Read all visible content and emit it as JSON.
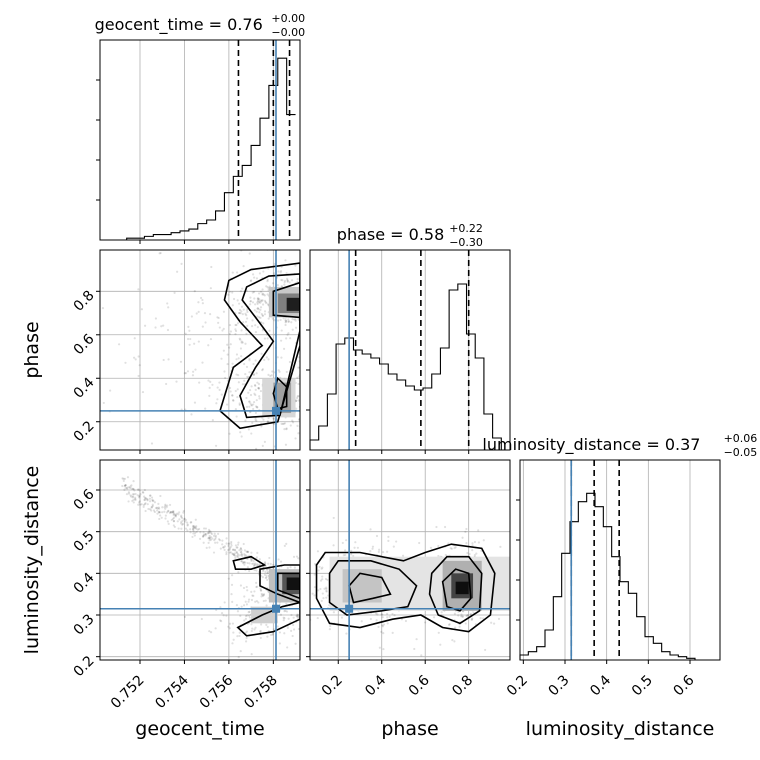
{
  "chart_data": {
    "type": "corner",
    "parameters": [
      "geocent_time",
      "phase",
      "luminosity_distance"
    ],
    "titles": {
      "geocent_time": {
        "name": "geocent_time",
        "median": "0.76",
        "plus": "+0.00",
        "minus": "−0.00"
      },
      "phase": {
        "name": "phase",
        "median": "0.58",
        "plus": "+0.22",
        "minus": "−0.30"
      },
      "luminosity_distance": {
        "name": "luminosity_distance",
        "median": "0.37",
        "plus": "+0.06",
        "minus": "−0.05"
      }
    },
    "axis_labels": {
      "geocent_time": "geocent_time",
      "phase": "phase",
      "luminosity_distance": "luminosity_distance"
    },
    "ranges": {
      "geocent_time": [
        0.7502,
        0.7592
      ],
      "phase": [
        0.07,
        0.99
      ],
      "luminosity_distance": [
        0.192,
        0.672
      ]
    },
    "ticks": {
      "geocent_time": {
        "values": [
          0.752,
          0.754,
          0.756,
          0.758
        ],
        "labels": [
          "0.752",
          "0.754",
          "0.756",
          "0.758"
        ]
      },
      "phase": {
        "values": [
          0.2,
          0.4,
          0.6,
          0.8
        ],
        "labels": [
          "0.2",
          "0.4",
          "0.6",
          "0.8"
        ]
      },
      "luminosity_distance": {
        "values": [
          0.2,
          0.3,
          0.4,
          0.5,
          0.6
        ],
        "labels": [
          "0.2",
          "0.3",
          "0.4",
          "0.5",
          "0.6"
        ]
      }
    },
    "truths": {
      "geocent_time": 0.75812,
      "phase": 0.25,
      "luminosity_distance": 0.315
    },
    "quantiles": {
      "geocent_time": [
        0.75643,
        0.758,
        0.75873
      ],
      "phase": [
        0.28,
        0.58,
        0.8
      ],
      "luminosity_distance": [
        0.315,
        0.37,
        0.43
      ]
    },
    "histograms": {
      "geocent_time": {
        "edges": [
          0.7502,
          0.7506,
          0.751,
          0.7514,
          0.7518,
          0.7522,
          0.7526,
          0.753,
          0.7534,
          0.7538,
          0.7542,
          0.7546,
          0.755,
          0.7554,
          0.7558,
          0.7562,
          0.7566,
          0.757,
          0.7574,
          0.7578,
          0.7582,
          0.7586,
          0.759
        ],
        "counts": [
          0,
          0,
          0,
          1,
          1,
          2,
          3,
          3,
          4,
          5,
          6,
          9,
          11,
          16,
          26,
          35,
          41,
          52,
          67,
          85,
          100,
          69
        ],
        "ylim": [
          0,
          110
        ]
      },
      "phase": {
        "edges": [
          0.07,
          0.11,
          0.15,
          0.19,
          0.23,
          0.27,
          0.31,
          0.35,
          0.39,
          0.43,
          0.47,
          0.51,
          0.55,
          0.59,
          0.63,
          0.67,
          0.71,
          0.75,
          0.79,
          0.83,
          0.87,
          0.91,
          0.95,
          0.99
        ],
        "counts": [
          5,
          12,
          28,
          53,
          56,
          50,
          48,
          46,
          43,
          38,
          35,
          32,
          30,
          31,
          38,
          51,
          80,
          83,
          58,
          46,
          18,
          6,
          0
        ],
        "ylim": [
          0,
          100
        ]
      },
      "luminosity_distance": {
        "edges": [
          0.192,
          0.212,
          0.232,
          0.252,
          0.272,
          0.292,
          0.312,
          0.332,
          0.352,
          0.372,
          0.392,
          0.412,
          0.432,
          0.452,
          0.472,
          0.492,
          0.512,
          0.532,
          0.552,
          0.572,
          0.592,
          0.612,
          0.632,
          0.652,
          0.672
        ],
        "counts": [
          3,
          5,
          8,
          18,
          38,
          64,
          83,
          95,
          100,
          92,
          80,
          62,
          47,
          40,
          26,
          14,
          10,
          5,
          3,
          2,
          1,
          0,
          0,
          0
        ],
        "ylim": [
          0,
          120
        ]
      }
    },
    "grid": true
  }
}
